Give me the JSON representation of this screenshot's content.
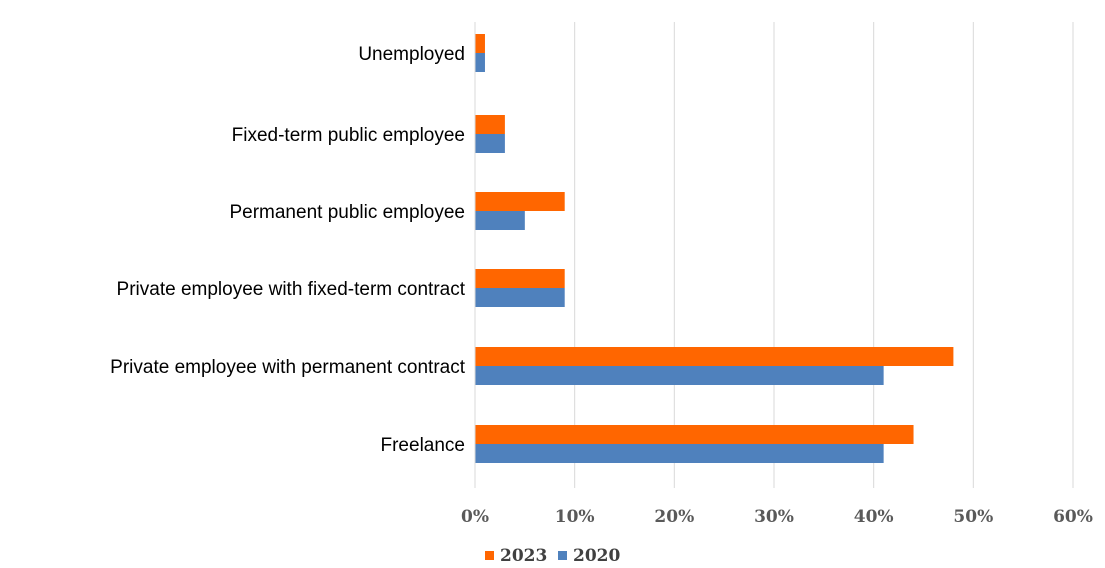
{
  "chart_data": {
    "type": "bar",
    "orientation": "horizontal",
    "categories": [
      "Unemployed",
      "Fixed-term public employee",
      "Permanent public employee",
      "Private employee with fixed-term contract",
      "Private employee with permanent contract",
      "Freelance"
    ],
    "series": [
      {
        "name": "2023",
        "color": "#ff6600",
        "values": [
          1,
          3,
          9,
          9,
          48,
          44
        ]
      },
      {
        "name": "2020",
        "color": "#4f81bd",
        "values": [
          1,
          3,
          5,
          9,
          41,
          41
        ]
      }
    ],
    "xlim": [
      0,
      60
    ],
    "xticks": [
      0,
      10,
      20,
      30,
      40,
      50,
      60
    ],
    "xtick_labels": [
      "0%",
      "10%",
      "20%",
      "30%",
      "40%",
      "50%",
      "60%"
    ],
    "title": "",
    "xlabel": "",
    "ylabel": "",
    "grid": "vertical",
    "legend": "bottom-center"
  }
}
